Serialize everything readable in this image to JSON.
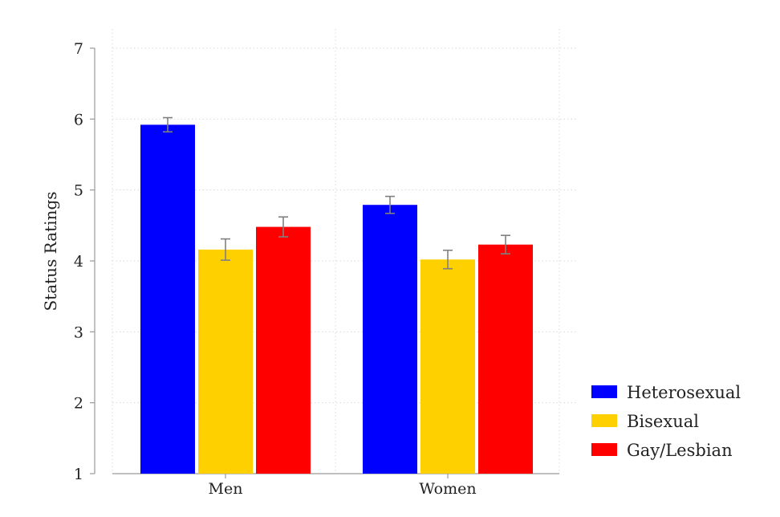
{
  "chart_data": {
    "type": "bar",
    "categories": [
      "Men",
      "Women"
    ],
    "series": [
      {
        "name": "Heterosexual",
        "color": "#0000ff",
        "values": [
          5.92,
          4.79
        ],
        "error": [
          0.1,
          0.12
        ]
      },
      {
        "name": "Bisexual",
        "color": "#ffd000",
        "values": [
          4.16,
          4.02
        ],
        "error": [
          0.15,
          0.13
        ]
      },
      {
        "name": "Gay/Lesbian",
        "color": "#ff0000",
        "values": [
          4.48,
          4.23
        ],
        "error": [
          0.14,
          0.13
        ]
      }
    ],
    "title": "",
    "xlabel": "",
    "ylabel": "Status Ratings",
    "ylim": [
      1,
      7
    ],
    "yticks": [
      1,
      2,
      3,
      4,
      5,
      6,
      7
    ],
    "grid": true,
    "legend": "bottom-right",
    "errorbar_color": "#808080"
  }
}
